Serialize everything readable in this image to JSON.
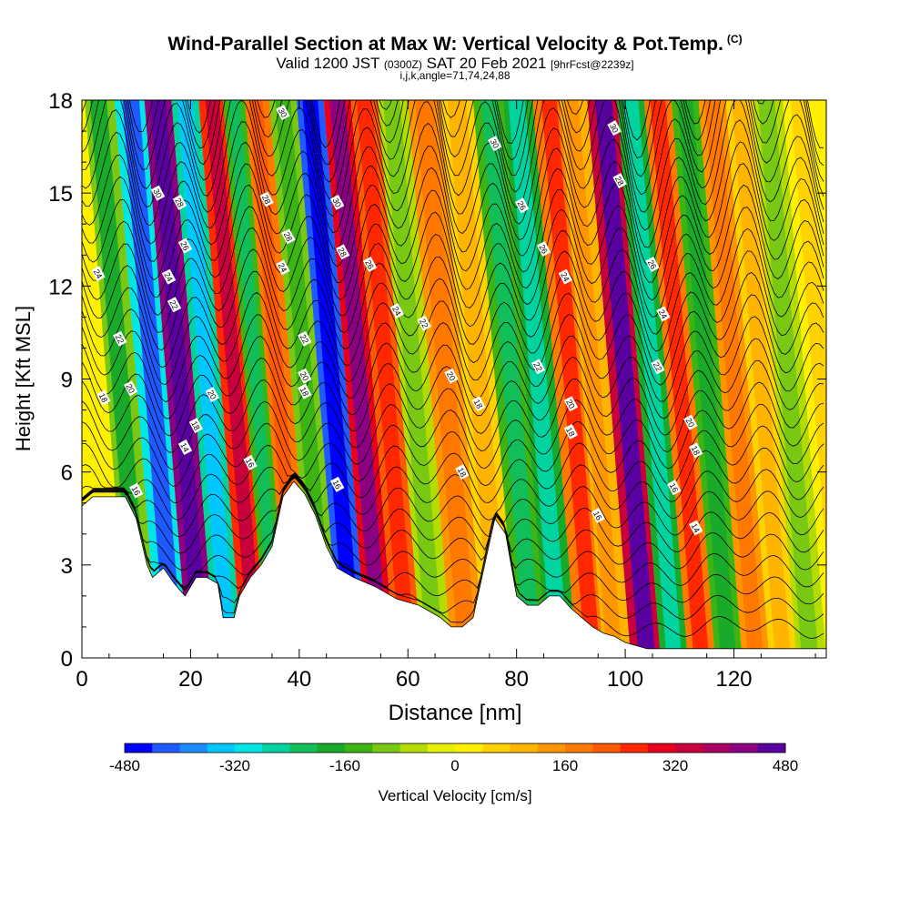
{
  "header": {
    "title": "Wind-Parallel Section at Max W: Vertical Velocity & Pot.Temp.",
    "title_mark": "(C)",
    "valid_prefix": "Valid 1200 JST",
    "valid_zulu": "(0300Z)",
    "valid_date": "SAT 20 Feb 2021",
    "forecast_info": "[9hrFcst@2239z]",
    "indices": "i,j,k,angle=71,74,24,88"
  },
  "chart_data": {
    "type": "heatmap",
    "xlabel": "Distance [nm]",
    "ylabel": "Height [Kft MSL]",
    "xlim": [
      0,
      137
    ],
    "ylim": [
      0,
      18
    ],
    "x_ticks": [
      0,
      20,
      40,
      60,
      80,
      100,
      120
    ],
    "y_ticks": [
      0,
      3,
      6,
      9,
      12,
      15,
      18
    ],
    "colorbar": {
      "label": "Vertical Velocity [cm/s]",
      "range": [
        -480,
        480
      ],
      "tick_values": [
        -480,
        -320,
        -160,
        0,
        160,
        320,
        480
      ],
      "colors": [
        "#0000ff",
        "#1e5aff",
        "#1a8cff",
        "#00c8ff",
        "#00e6e6",
        "#00d2a0",
        "#12be5a",
        "#18aa28",
        "#3cb414",
        "#78c814",
        "#b4dc00",
        "#e6f000",
        "#fff000",
        "#ffd200",
        "#ffb400",
        "#ff9600",
        "#ff7800",
        "#ff5a00",
        "#ff2800",
        "#e6001e",
        "#c8003c",
        "#aa0064",
        "#8c0082",
        "#5a00a0"
      ]
    },
    "velocity_bands": [
      {
        "x": 3,
        "value": -120
      },
      {
        "x": 9,
        "value": -300
      },
      {
        "x": 14,
        "value": 420
      },
      {
        "x": 19,
        "value": -250
      },
      {
        "x": 24,
        "value": 240
      },
      {
        "x": 28,
        "value": -160
      },
      {
        "x": 32,
        "value": 160
      },
      {
        "x": 37,
        "value": -100
      },
      {
        "x": 42,
        "value": -420
      },
      {
        "x": 47,
        "value": 300
      },
      {
        "x": 52,
        "value": 200
      },
      {
        "x": 57,
        "value": -60
      },
      {
        "x": 63,
        "value": 120
      },
      {
        "x": 69,
        "value": 60
      },
      {
        "x": 75,
        "value": -150
      },
      {
        "x": 80,
        "value": -190
      },
      {
        "x": 86,
        "value": 180
      },
      {
        "x": 90,
        "value": 90
      },
      {
        "x": 96,
        "value": 330
      },
      {
        "x": 101,
        "value": -190
      },
      {
        "x": 106,
        "value": 180
      },
      {
        "x": 111,
        "value": -140
      },
      {
        "x": 116,
        "value": 120
      },
      {
        "x": 121,
        "value": 60
      },
      {
        "x": 126,
        "value": -60
      },
      {
        "x": 132,
        "value": 30
      }
    ],
    "terrain": [
      {
        "x": 0,
        "h": 4.9
      },
      {
        "x": 2,
        "h": 5.2
      },
      {
        "x": 8,
        "h": 5.2
      },
      {
        "x": 10,
        "h": 4.5
      },
      {
        "x": 12,
        "h": 3.0
      },
      {
        "x": 13,
        "h": 2.6
      },
      {
        "x": 15,
        "h": 2.9
      },
      {
        "x": 17,
        "h": 2.4
      },
      {
        "x": 19,
        "h": 2.0
      },
      {
        "x": 21,
        "h": 2.6
      },
      {
        "x": 23,
        "h": 2.6
      },
      {
        "x": 25,
        "h": 2.4
      },
      {
        "x": 26,
        "h": 1.3
      },
      {
        "x": 28,
        "h": 1.3
      },
      {
        "x": 29,
        "h": 2.0
      },
      {
        "x": 31,
        "h": 2.6
      },
      {
        "x": 33,
        "h": 3.0
      },
      {
        "x": 35,
        "h": 3.6
      },
      {
        "x": 37,
        "h": 5.2
      },
      {
        "x": 39,
        "h": 5.7
      },
      {
        "x": 41,
        "h": 5.3
      },
      {
        "x": 43,
        "h": 4.6
      },
      {
        "x": 45,
        "h": 3.6
      },
      {
        "x": 47,
        "h": 2.9
      },
      {
        "x": 50,
        "h": 2.6
      },
      {
        "x": 54,
        "h": 2.3
      },
      {
        "x": 58,
        "h": 1.9
      },
      {
        "x": 62,
        "h": 1.7
      },
      {
        "x": 66,
        "h": 1.3
      },
      {
        "x": 68,
        "h": 1.0
      },
      {
        "x": 70,
        "h": 1.0
      },
      {
        "x": 72,
        "h": 1.3
      },
      {
        "x": 74,
        "h": 2.9
      },
      {
        "x": 76,
        "h": 4.5
      },
      {
        "x": 78,
        "h": 4.0
      },
      {
        "x": 80,
        "h": 2.0
      },
      {
        "x": 82,
        "h": 1.7
      },
      {
        "x": 84,
        "h": 1.7
      },
      {
        "x": 86,
        "h": 2.0
      },
      {
        "x": 88,
        "h": 2.0
      },
      {
        "x": 90,
        "h": 1.6
      },
      {
        "x": 92,
        "h": 1.3
      },
      {
        "x": 94,
        "h": 1.0
      },
      {
        "x": 96,
        "h": 0.8
      },
      {
        "x": 98,
        "h": 0.7
      },
      {
        "x": 100,
        "h": 0.5
      },
      {
        "x": 104,
        "h": 0.3
      },
      {
        "x": 137,
        "h": 0.3
      }
    ],
    "theta_labels": [
      {
        "x": 3,
        "y": 12.4,
        "text": "24"
      },
      {
        "x": 7,
        "y": 10.3,
        "text": "22"
      },
      {
        "x": 4,
        "y": 8.4,
        "text": "18"
      },
      {
        "x": 9,
        "y": 8.7,
        "text": "20"
      },
      {
        "x": 10,
        "y": 5.4,
        "text": "16"
      },
      {
        "x": 14,
        "y": 15.0,
        "text": "30"
      },
      {
        "x": 18,
        "y": 14.7,
        "text": "28"
      },
      {
        "x": 19,
        "y": 13.3,
        "text": "26"
      },
      {
        "x": 16,
        "y": 12.3,
        "text": "24"
      },
      {
        "x": 17,
        "y": 11.4,
        "text": "22"
      },
      {
        "x": 24,
        "y": 8.5,
        "text": "20"
      },
      {
        "x": 21,
        "y": 7.5,
        "text": "18"
      },
      {
        "x": 19,
        "y": 6.8,
        "text": "14"
      },
      {
        "x": 31,
        "y": 6.3,
        "text": "16"
      },
      {
        "x": 34,
        "y": 14.8,
        "text": "28"
      },
      {
        "x": 38,
        "y": 13.6,
        "text": "28"
      },
      {
        "x": 37,
        "y": 12.6,
        "text": "24"
      },
      {
        "x": 41,
        "y": 10.3,
        "text": "22"
      },
      {
        "x": 41,
        "y": 9.1,
        "text": "20"
      },
      {
        "x": 41,
        "y": 8.6,
        "text": "18"
      },
      {
        "x": 37,
        "y": 17.6,
        "text": "30"
      },
      {
        "x": 47,
        "y": 14.7,
        "text": "30"
      },
      {
        "x": 48,
        "y": 13.1,
        "text": "28"
      },
      {
        "x": 53,
        "y": 12.7,
        "text": "26"
      },
      {
        "x": 58,
        "y": 11.2,
        "text": "24"
      },
      {
        "x": 63,
        "y": 10.8,
        "text": "22"
      },
      {
        "x": 68,
        "y": 9.1,
        "text": "20"
      },
      {
        "x": 73,
        "y": 8.2,
        "text": "18"
      },
      {
        "x": 70,
        "y": 6.0,
        "text": "18"
      },
      {
        "x": 47,
        "y": 5.6,
        "text": "16"
      },
      {
        "x": 76,
        "y": 16.6,
        "text": "30"
      },
      {
        "x": 81,
        "y": 14.6,
        "text": "26"
      },
      {
        "x": 85,
        "y": 13.2,
        "text": "26"
      },
      {
        "x": 89,
        "y": 12.3,
        "text": "24"
      },
      {
        "x": 84,
        "y": 9.4,
        "text": "22"
      },
      {
        "x": 90,
        "y": 8.2,
        "text": "20"
      },
      {
        "x": 90,
        "y": 7.3,
        "text": "18"
      },
      {
        "x": 95,
        "y": 4.6,
        "text": "16"
      },
      {
        "x": 98,
        "y": 17.1,
        "text": "30"
      },
      {
        "x": 99,
        "y": 15.4,
        "text": "28"
      },
      {
        "x": 105,
        "y": 12.7,
        "text": "26"
      },
      {
        "x": 107,
        "y": 11.1,
        "text": "24"
      },
      {
        "x": 106,
        "y": 9.4,
        "text": "22"
      },
      {
        "x": 112,
        "y": 7.6,
        "text": "20"
      },
      {
        "x": 113,
        "y": 6.7,
        "text": "18"
      },
      {
        "x": 109,
        "y": 5.5,
        "text": "16"
      },
      {
        "x": 113,
        "y": 4.2,
        "text": "14"
      }
    ]
  }
}
